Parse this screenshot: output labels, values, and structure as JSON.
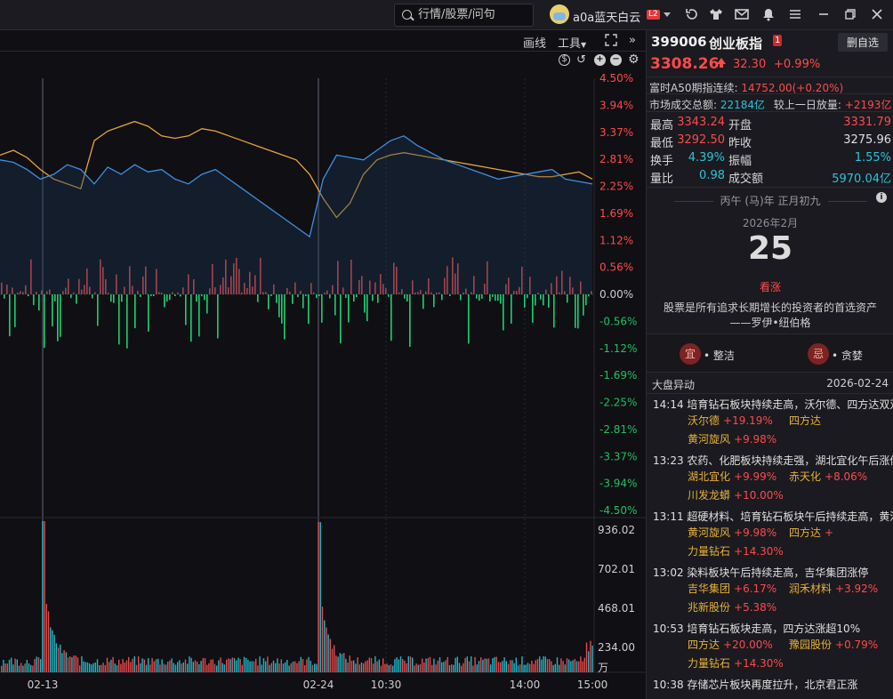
{
  "topbar": {
    "search_placeholder": "行情/股票/问句",
    "username": "a0a蓝天白云",
    "level_badge": "L2",
    "icons": [
      "tshirt-icon",
      "mail-icon",
      "bell-icon",
      "menu-icon",
      "minimize-icon",
      "restore-icon",
      "close-icon"
    ]
  },
  "toolbar": {
    "draw_label": "画线",
    "tools_label": "工具",
    "fullscreen_icon": "expand-icon",
    "collapse_icon": "double-chevron-right-icon"
  },
  "chart_data": [
    {
      "type": "line",
      "title": "",
      "x_labels": [
        "02-13",
        "02-24",
        "10:30",
        "14:00",
        "15:00"
      ],
      "y_ticks_pct": [
        "4.50%",
        "3.94%",
        "3.37%",
        "2.81%",
        "2.25%",
        "1.69%",
        "1.12%",
        "0.56%",
        "0.00%",
        "-0.56%",
        "-1.12%",
        "-1.69%",
        "-2.25%",
        "-2.81%",
        "-3.37%",
        "-3.94%",
        "-4.50%"
      ],
      "ylim": [
        -4.5,
        4.5
      ],
      "series": [
        {
          "color": "#e9a33a",
          "values": [
            2.9,
            3.0,
            2.85,
            2.6,
            2.4,
            2.3,
            2.2,
            3.2,
            3.4,
            3.5,
            3.6,
            3.5,
            3.3,
            3.25,
            3.3,
            3.45,
            3.4,
            3.3,
            3.2,
            3.1,
            3.0,
            2.9,
            2.8,
            2.5,
            2.0,
            1.6,
            1.9,
            2.5,
            2.8,
            2.9,
            2.95,
            2.9,
            2.85,
            2.8,
            2.75,
            2.7,
            2.65,
            2.6,
            2.55,
            2.5,
            2.45,
            2.45,
            2.5,
            2.55,
            2.4
          ]
        },
        {
          "color": "#3f8fe0",
          "values": [
            2.8,
            2.75,
            2.6,
            2.4,
            2.5,
            2.7,
            2.6,
            2.3,
            2.65,
            2.5,
            2.7,
            2.55,
            2.6,
            2.4,
            2.3,
            2.5,
            2.6,
            2.4,
            2.2,
            2.0,
            1.8,
            1.6,
            1.4,
            1.2,
            2.4,
            2.9,
            2.85,
            2.8,
            3.0,
            3.2,
            3.3,
            3.1,
            2.95,
            2.8,
            2.7,
            2.6,
            2.5,
            2.4,
            2.45,
            2.5,
            2.55,
            2.6,
            2.4,
            2.35,
            2.3
          ]
        }
      ]
    },
    {
      "type": "bar",
      "title": "",
      "ylabel": "万",
      "y_ticks": [
        "936.02",
        "702.01",
        "468.01",
        "234.00"
      ],
      "ylim": [
        0,
        936.02
      ]
    }
  ],
  "stock": {
    "code": "399006",
    "name": "创业板指",
    "badge": "1",
    "delete_label": "删自选",
    "price": "3308.26",
    "change": "32.30",
    "change_pct": "+0.99%"
  },
  "a50": {
    "label": "富时A50期指连续:",
    "value": "14752.00(+0.20%)"
  },
  "turnover": {
    "label": "市场成交总额:",
    "value": "22184亿",
    "label2": "较上一日放量:",
    "value2": "+2193亿"
  },
  "quotes": [
    {
      "k1": "最高",
      "v1": "3343.24",
      "k2": "开盘",
      "v2": "3331.79",
      "c1": "#ff4a4a",
      "c2": "#ff4a4a"
    },
    {
      "k1": "最低",
      "v1": "3292.50",
      "k2": "昨收",
      "v2": "3275.96",
      "c1": "#ff4a4a",
      "c2": "#e0e0e0"
    },
    {
      "k1": "换手",
      "v1": "4.39%",
      "k2": "振幅",
      "v2": "1.55%",
      "c1": "#2bc4d8",
      "c2": "#2bc4d8"
    },
    {
      "k1": "量比",
      "v1": "0.98",
      "k2": "成交额",
      "v2": "5970.04亿",
      "c1": "#2bc4d8",
      "c2": "#2bc4d8"
    }
  ],
  "calendar": {
    "lunar": "丙午 (马)年 正月初九",
    "month": "2026年2月",
    "day": "25",
    "mood": "看涨",
    "quote_line1": "股票是所有追求长期增长的投资者的首选资产",
    "quote_line2": "——罗伊•纽伯格",
    "yi_char": "宜",
    "yi_text": "• 整洁",
    "ji_char": "忌",
    "ji_text": "• 贪婪"
  },
  "news": {
    "title": "大盘异动",
    "date": "2026-02-24",
    "items": [
      {
        "time": "14:14",
        "text": "培育钻石板块持续走高，沃尔德、四方达双双",
        "stocks": [
          {
            "name": "沃尔德",
            "pct": "+19.19%"
          },
          {
            "name": "四方达",
            "pct": ""
          },
          {
            "name": "黄河旋风",
            "pct": "+9.98%"
          }
        ]
      },
      {
        "time": "13:23",
        "text": "农药、化肥板块持续走强，湖北宜化午后涨停",
        "stocks": [
          {
            "name": "湖北宜化",
            "pct": "+9.99%"
          },
          {
            "name": "赤天化",
            "pct": "+8.06%"
          },
          {
            "name": "川发龙蟒",
            "pct": "+10.00%"
          }
        ]
      },
      {
        "time": "13:11",
        "text": "超硬材料、培育钻石板块午后持续走高，黄河",
        "stocks": [
          {
            "name": "黄河旋风",
            "pct": "+9.98%"
          },
          {
            "name": "四方达",
            "pct": "+"
          },
          {
            "name": "力量钻石",
            "pct": "+14.30%"
          }
        ]
      },
      {
        "time": "13:02",
        "text": "染料板块午后持续走高，吉华集团涨停",
        "stocks": [
          {
            "name": "吉华集团",
            "pct": "+6.17%"
          },
          {
            "name": "润禾材料",
            "pct": "+3.92%"
          },
          {
            "name": "兆新股份",
            "pct": "+5.38%"
          }
        ]
      },
      {
        "time": "10:53",
        "text": "培育钻石板块走高，四方达涨超10%",
        "stocks": [
          {
            "name": "四方达",
            "pct": "+20.00%"
          },
          {
            "name": "豫园股份",
            "pct": "+0.79%"
          },
          {
            "name": "力量钻石",
            "pct": "+14.30%"
          }
        ]
      },
      {
        "time": "10:38",
        "text": "存储芯片板块再度拉升，北京君正涨",
        "stocks": []
      }
    ]
  }
}
